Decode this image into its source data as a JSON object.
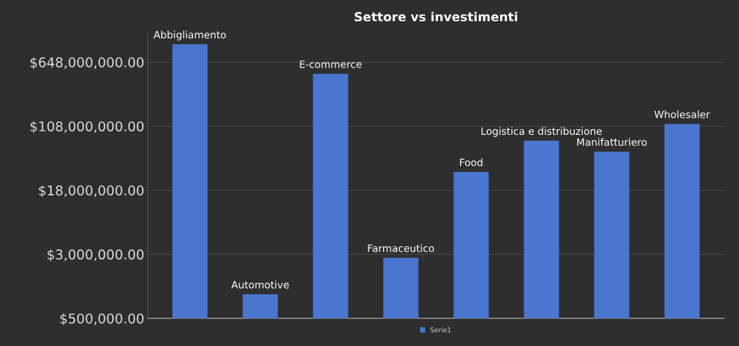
{
  "chart_data": {
    "type": "bar",
    "title": "Settore vs investimenti",
    "categories": [
      "Abbigliamento",
      "Automotive",
      "E-commerce",
      "Farmaceutico",
      "Food",
      "Logistica e distribuzione",
      "Manifatturiero",
      "Wholesaler"
    ],
    "series": [
      {
        "name": "Serie1",
        "color": "#4a76d0",
        "values": [
          1070000000,
          980000,
          467000000,
          2720000,
          30000000,
          72000000,
          53000000,
          115000000
        ]
      }
    ],
    "log": true,
    "ylim": [
      500000,
      1400000000
    ],
    "yticks": [
      {
        "value": 500000,
        "label": "$500,000.00"
      },
      {
        "value": 3000000,
        "label": "$3,000,000.00"
      },
      {
        "value": 18000000,
        "label": "$18,000,000.00"
      },
      {
        "value": 108000000,
        "label": "$108,000,000.00"
      },
      {
        "value": 648000000,
        "label": "$648,000,000.00"
      }
    ],
    "grid": "y",
    "legend": "bottom",
    "tick_labels": "y"
  }
}
